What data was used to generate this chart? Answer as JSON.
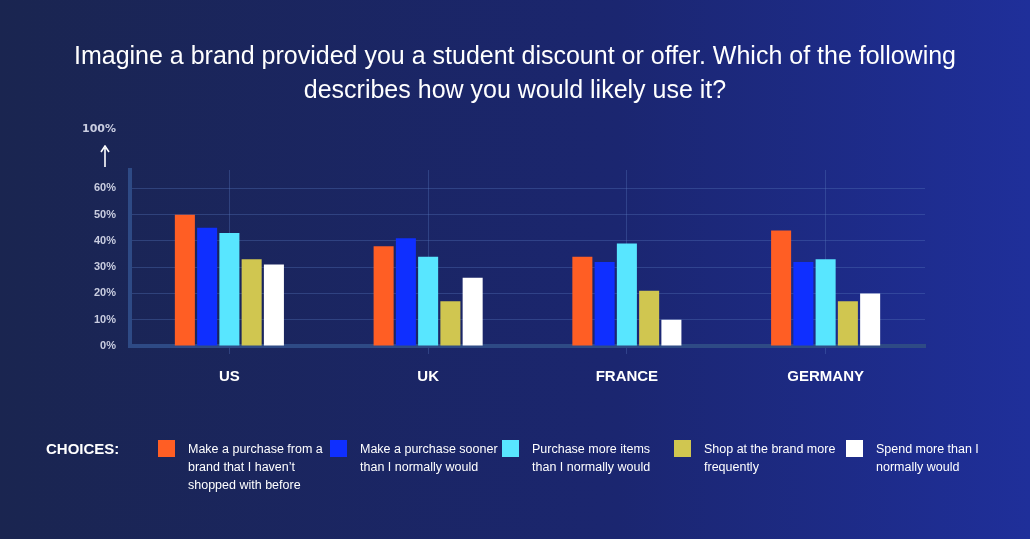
{
  "chart_data": {
    "type": "bar",
    "title": "Imagine a brand provided you a student discount or offer. Which of the following describes how you would likely use it?",
    "categories": [
      "US",
      "UK",
      "FRANCE",
      "GERMANY"
    ],
    "series": [
      {
        "name": "Make a purchase from a brand that I haven’t shopped with before",
        "color": "#ff5e24",
        "values": [
          50,
          38,
          34,
          44
        ]
      },
      {
        "name": "Make a purchase sooner than I normally would",
        "color": "#0f2fff",
        "values": [
          45,
          41,
          32,
          32
        ]
      },
      {
        "name": "Purchase more items than I normally would",
        "color": "#58e6ff",
        "values": [
          43,
          34,
          39,
          33
        ]
      },
      {
        "name": "Shop at the brand more frequently",
        "color": "#d0c650",
        "values": [
          33,
          17,
          21,
          17
        ]
      },
      {
        "name": "Spend more than I normally would",
        "color": "#ffffff",
        "values": [
          31,
          26,
          10,
          20
        ]
      }
    ],
    "ylim": [
      0,
      67
    ],
    "yticks": [
      {
        "value": 0,
        "label": "0%"
      },
      {
        "value": 10,
        "label": "10%"
      },
      {
        "value": 20,
        "label": "20%"
      },
      {
        "value": 30,
        "label": "30%"
      },
      {
        "value": 40,
        "label": "40%"
      },
      {
        "value": 50,
        "label": "50%"
      },
      {
        "value": 60,
        "label": "60%"
      }
    ],
    "annotations": [
      "100%"
    ],
    "grid": true,
    "legend": "bottom",
    "legend_title": "CHOICES:"
  }
}
